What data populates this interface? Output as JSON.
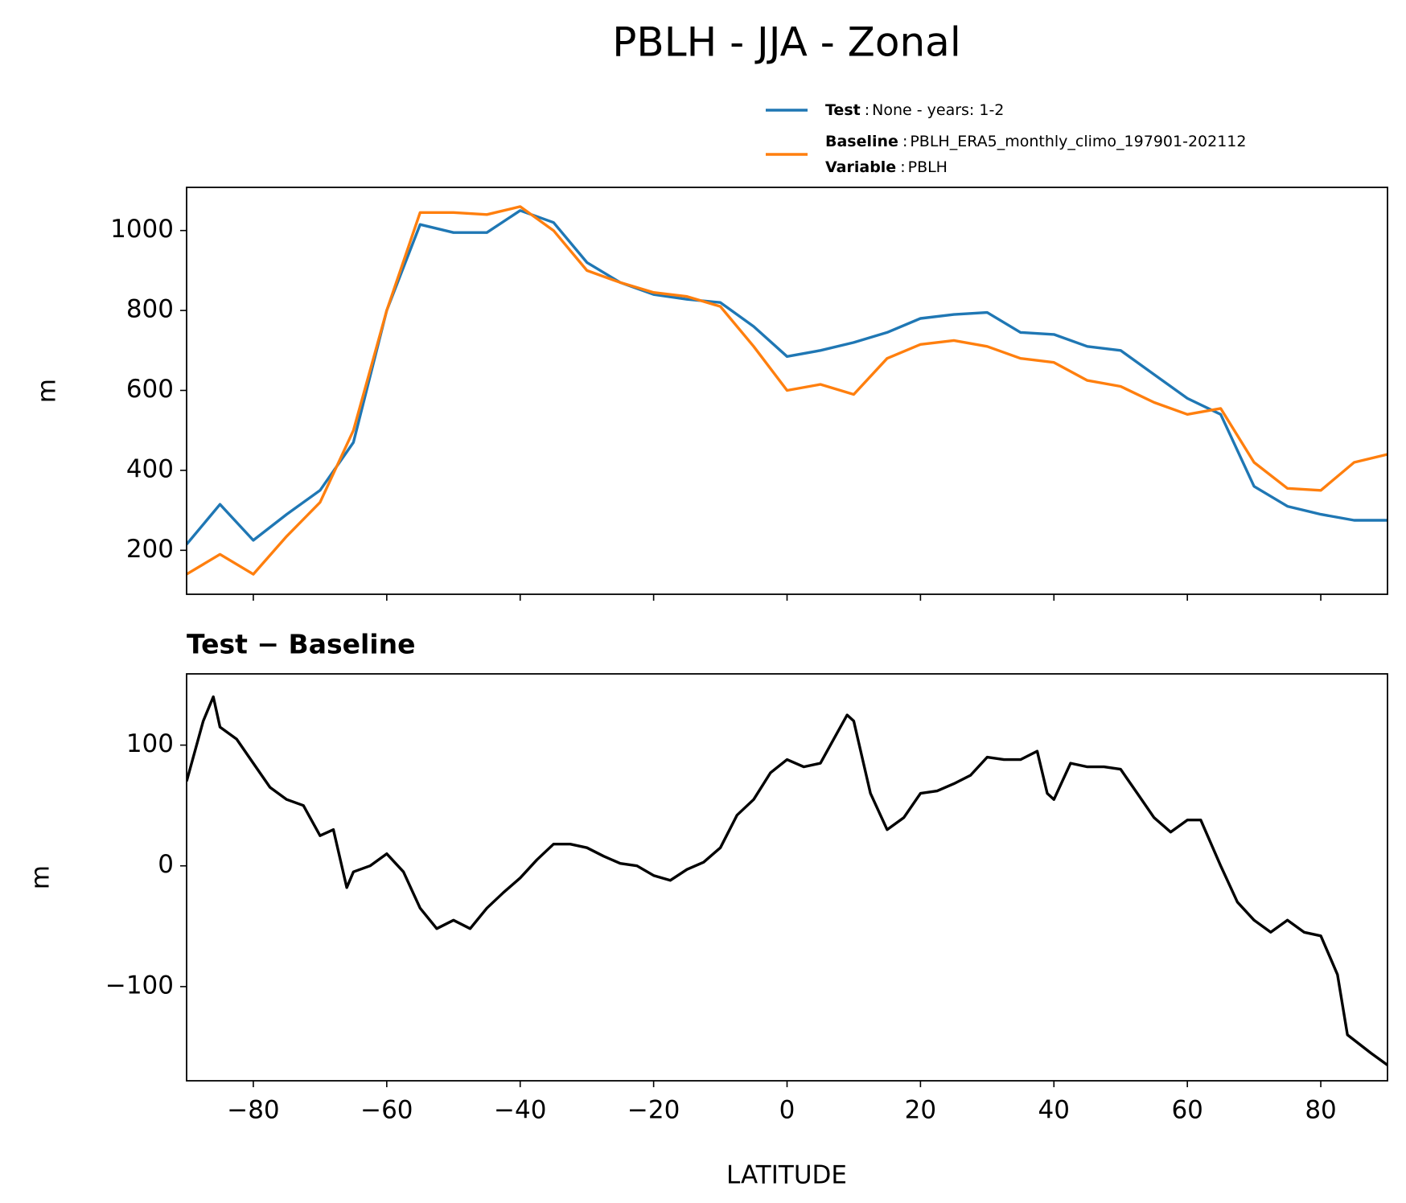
{
  "chart_data": [
    {
      "type": "line",
      "title": "PBLH - JJA - Zonal",
      "ylabel": "m",
      "legend_separator": ":",
      "variable_label": "Variable",
      "variable": "PBLH",
      "x": [
        -90,
        -85,
        -80,
        -75,
        -70,
        -65,
        -60,
        -55,
        -50,
        -45,
        -40,
        -35,
        -30,
        -25,
        -20,
        -15,
        -10,
        -5,
        0,
        5,
        10,
        15,
        20,
        25,
        30,
        35,
        40,
        45,
        50,
        55,
        60,
        65,
        70,
        75,
        80,
        85,
        90
      ],
      "series": [
        {
          "name": "Test",
          "description": "None - years: 1-2",
          "color": "#1f77b4",
          "values": [
            215,
            315,
            225,
            290,
            350,
            470,
            800,
            1015,
            995,
            995,
            1050,
            1020,
            920,
            870,
            840,
            828,
            820,
            760,
            685,
            700,
            720,
            745,
            780,
            790,
            795,
            745,
            740,
            710,
            700,
            640,
            580,
            540,
            360,
            310,
            290,
            275,
            275
          ]
        },
        {
          "name": "Baseline",
          "description": "PBLH_ERA5_monthly_climo_197901-202112",
          "color": "#ff7f0e",
          "values": [
            140,
            190,
            140,
            235,
            320,
            500,
            800,
            1045,
            1045,
            1040,
            1060,
            1000,
            900,
            870,
            845,
            835,
            810,
            710,
            600,
            615,
            590,
            680,
            715,
            725,
            710,
            680,
            670,
            625,
            610,
            570,
            540,
            555,
            420,
            355,
            350,
            420,
            440
          ]
        }
      ],
      "xlim": [
        -90,
        90
      ],
      "xticks": [
        -80,
        -60,
        -40,
        -20,
        0,
        20,
        40,
        60,
        80
      ],
      "ylim": [
        90,
        1108
      ],
      "yticks": [
        200,
        400,
        600,
        800,
        1000
      ]
    },
    {
      "type": "line",
      "title": "Test − Baseline",
      "ylabel": "m",
      "xlabel": "LATITUDE",
      "x": [
        -90,
        -87.5,
        -86,
        -85,
        -82.5,
        -80,
        -77.5,
        -75,
        -72.5,
        -70,
        -68,
        -66,
        -65,
        -62.5,
        -60,
        -57.5,
        -55,
        -52.5,
        -50,
        -47.5,
        -45,
        -42.5,
        -40,
        -37.5,
        -35,
        -32.5,
        -30,
        -27.5,
        -25,
        -22.5,
        -20,
        -17.5,
        -15,
        -12.5,
        -10,
        -7.5,
        -5,
        -2.5,
        0,
        2.5,
        5,
        7.5,
        9,
        10,
        12.5,
        15,
        17.5,
        20,
        22.5,
        25,
        27.5,
        30,
        32.5,
        35,
        37.5,
        39,
        40,
        42.5,
        45,
        47.5,
        50,
        52.5,
        55,
        57.5,
        60,
        62,
        65,
        67.5,
        70,
        72.5,
        75,
        77.5,
        80,
        82.5,
        84,
        87.5,
        90
      ],
      "series": [
        {
          "color": "#000000",
          "values": [
            70,
            120,
            140,
            115,
            105,
            85,
            65,
            55,
            50,
            25,
            30,
            -18,
            -5,
            0,
            10,
            -5,
            -35,
            -52,
            -45,
            -52,
            -35,
            -22,
            -10,
            5,
            18,
            18,
            15,
            8,
            2,
            0,
            -8,
            -12,
            -3,
            3,
            15,
            42,
            55,
            77,
            88,
            82,
            85,
            110,
            125,
            120,
            60,
            30,
            40,
            60,
            62,
            68,
            75,
            90,
            88,
            88,
            95,
            60,
            55,
            85,
            82,
            82,
            80,
            60,
            40,
            28,
            38,
            38,
            0,
            -30,
            -45,
            -55,
            -45,
            -55,
            -58,
            -90,
            -140,
            -155,
            -165
          ]
        }
      ],
      "xlim": [
        -90,
        90
      ],
      "xticks": [
        {
          "value": -80,
          "label": "−80"
        },
        {
          "value": -60,
          "label": "−60"
        },
        {
          "value": -40,
          "label": "−40"
        },
        {
          "value": -20,
          "label": "−20"
        },
        0,
        20,
        40,
        60,
        80
      ],
      "ylim": [
        -178,
        159
      ],
      "yticks": [
        {
          "value": -100,
          "label": "−100"
        },
        0,
        100
      ]
    }
  ]
}
